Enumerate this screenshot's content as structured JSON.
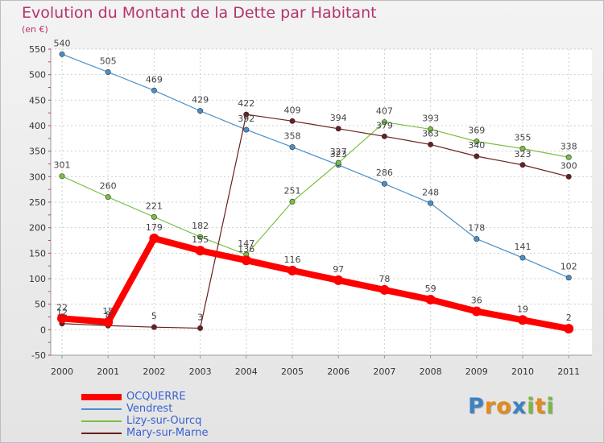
{
  "title": "Evolution du Montant de la Dette par Habitant",
  "subtitle": "(en €)",
  "logo": {
    "text": "Proxiti",
    "letters": [
      "P",
      "r",
      "o",
      "x",
      "i",
      "t",
      "i"
    ],
    "letter_colors": [
      "#3b82c4",
      "#e58b1a",
      "#e58b1a",
      "#3b82c4",
      "#7ab845",
      "#e58b1a",
      "#7ab845"
    ]
  },
  "chart_data": {
    "type": "line",
    "x": [
      "2000",
      "2001",
      "2002",
      "2003",
      "2004",
      "2005",
      "2006",
      "2007",
      "2008",
      "2009",
      "2010",
      "2011"
    ],
    "ylim": [
      -50,
      550
    ],
    "yticks": [
      "-50",
      "0",
      "50",
      "100",
      "150",
      "200",
      "250",
      "300",
      "350",
      "400",
      "450",
      "500",
      "550"
    ],
    "grid": true,
    "legend_position": "bottom-left",
    "series": [
      {
        "name": "OCQUERRE",
        "color": "#ff0000",
        "emphasis": true,
        "values": [
          22,
          15,
          179,
          155,
          136,
          116,
          97,
          78,
          59,
          36,
          19,
          2
        ],
        "labels": [
          "22",
          "15",
          "179",
          "155",
          "136",
          "116",
          "97",
          "78",
          "59",
          "36",
          "19",
          "2"
        ]
      },
      {
        "name": "Vendrest",
        "color": "#4a90c8",
        "values": [
          540,
          505,
          469,
          429,
          392,
          358,
          323,
          286,
          248,
          178,
          141,
          102
        ],
        "labels": [
          "540",
          "505",
          "469",
          "429",
          "392",
          "358",
          "323",
          "286",
          "248",
          "178",
          "141",
          "102"
        ]
      },
      {
        "name": "Lizy-sur-Ourcq",
        "color": "#7ac143",
        "values": [
          301,
          260,
          221,
          182,
          147,
          251,
          327,
          407,
          393,
          369,
          355,
          338
        ],
        "labels": [
          "301",
          "260",
          "221",
          "182",
          "147",
          "251",
          "327",
          "407",
          "393",
          "369",
          "355",
          "338"
        ]
      },
      {
        "name": "Mary-sur-Marne",
        "color": "#6b1f1f",
        "values": [
          12,
          8,
          5,
          3,
          422,
          409,
          394,
          379,
          363,
          340,
          323,
          300
        ],
        "labels": [
          "12",
          "8",
          "5",
          "3",
          "422",
          "409",
          "394",
          "379",
          "363",
          "340",
          "323",
          "300"
        ]
      }
    ]
  }
}
